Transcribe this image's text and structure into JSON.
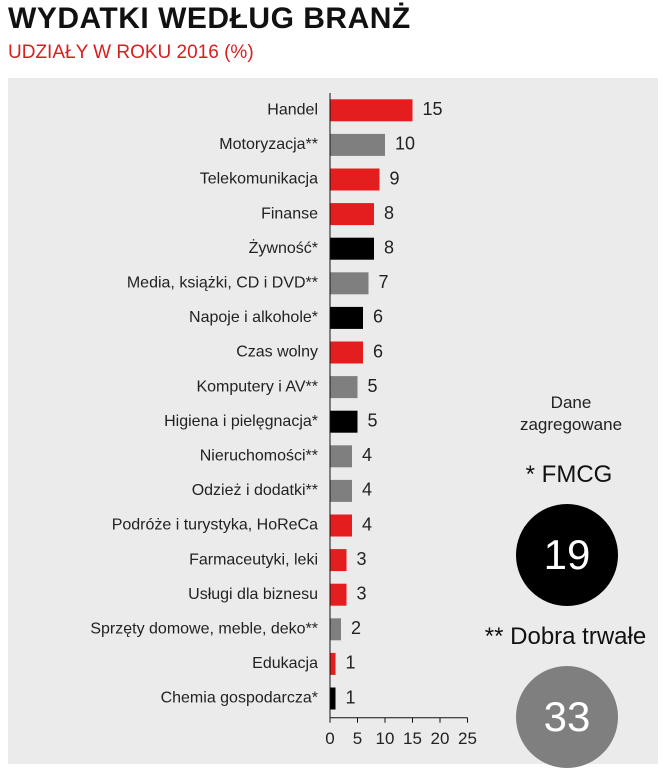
{
  "title": "WYDATKI WEDŁUG BRANŻ",
  "subtitle": "UDZIAŁY W ROKU 2016 (%)",
  "colors": {
    "red": "#e41e1e",
    "gray": "#7f7f7f",
    "black": "#000000"
  },
  "chart_data": {
    "type": "bar",
    "orientation": "horizontal",
    "categories": [
      "Handel",
      "Motoryzacja**",
      "Telekomunikacja",
      "Finanse",
      "Żywność*",
      "Media, książki, CD i DVD**",
      "Napoje i alkohole*",
      "Czas wolny",
      "Komputery i AV**",
      "Higiena i pielęgnacja*",
      "Nieruchomości**",
      "Odzież i dodatki**",
      "Podróże i turystyka, HoReCa",
      "Farmaceutyki, leki",
      "Usługi dla biznesu",
      "Sprzęty domowe, meble, deko**",
      "Edukacja",
      "Chemia gospodarcza*"
    ],
    "values": [
      15,
      10,
      9,
      8,
      8,
      7,
      6,
      6,
      5,
      5,
      4,
      4,
      4,
      3,
      3,
      2,
      1,
      1
    ],
    "bar_colors": [
      "red",
      "gray",
      "red",
      "red",
      "black",
      "gray",
      "black",
      "red",
      "gray",
      "black",
      "gray",
      "gray",
      "red",
      "red",
      "red",
      "gray",
      "red",
      "black"
    ],
    "xlim": [
      0,
      25
    ],
    "xticks": [
      0,
      5,
      10,
      15,
      20,
      25
    ],
    "xlabel": "",
    "ylabel": "",
    "grid": false,
    "legend": "none"
  },
  "aggregates": {
    "heading": [
      "Dane",
      "zagregowane"
    ],
    "fmcg_label": "* FMCG",
    "fmcg_value": "19",
    "durable_label": "** Dobra trwałe",
    "durable_value": "33"
  }
}
